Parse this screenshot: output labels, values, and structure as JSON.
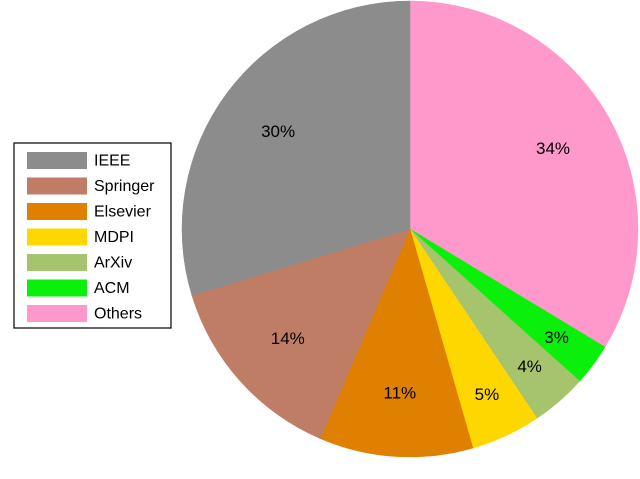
{
  "chart_data": {
    "type": "pie",
    "title": "",
    "legend": {
      "placement": "left"
    },
    "slices": [
      {
        "label": "IEEE",
        "value": 30,
        "display": "30%",
        "color": "#8c8c8c"
      },
      {
        "label": "Springer",
        "value": 14,
        "display": "14%",
        "color": "#bf7d66"
      },
      {
        "label": "Elsevier",
        "value": 11,
        "display": "11%",
        "color": "#e08000"
      },
      {
        "label": "MDPI",
        "value": 5,
        "display": "5%",
        "color": "#ffd700"
      },
      {
        "label": "ArXiv",
        "value": 4,
        "display": "4%",
        "color": "#a6c46e"
      },
      {
        "label": "ACM",
        "value": 3,
        "display": "3%",
        "color": "#0af00a"
      },
      {
        "label": "Others",
        "value": 34,
        "display": "34%",
        "color": "#ff99cc"
      }
    ],
    "start_position": "12 o'clock",
    "direction": "clockwise starting with Others"
  }
}
